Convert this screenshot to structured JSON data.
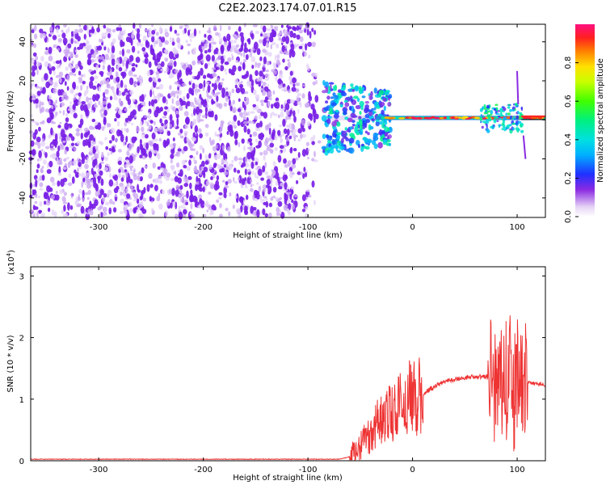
{
  "title": "C2E2.2023.174.07.01.R15",
  "colors": {
    "snr_line": "#ee3333",
    "axis": "#000000",
    "noise": "#7a1fe6",
    "bg": "#ffffff"
  },
  "chart_data": [
    {
      "type": "heatmap",
      "xlabel": "Height of straight line (km)",
      "ylabel": "Frequency (Hz)",
      "xlim": [
        -365,
        127
      ],
      "ylim": [
        -50,
        49
      ],
      "x_ticks": [
        -300,
        -200,
        -100,
        0,
        100
      ],
      "x_tick_labels": [
        "-300",
        "-200",
        "-100",
        "0",
        "100"
      ],
      "y_ticks": [
        -40,
        -20,
        0,
        20,
        40
      ],
      "y_tick_labels": [
        "-40",
        "-20",
        "0",
        "20",
        "40"
      ],
      "colorbar": {
        "label": "Normalized spectral amplitude",
        "range": [
          0,
          1
        ],
        "ticks": [
          0.0,
          0.2,
          0.4,
          0.6,
          0.8
        ],
        "tick_labels": [
          "0.0",
          "0.2",
          "0.4",
          "0.6",
          "0.8"
        ]
      },
      "noise_region": [
        -365,
        -85
      ],
      "signal_frequency_hz": 1
    },
    {
      "type": "line",
      "xlabel": "Height of straight line (km)",
      "ylabel": "SNR (10 * v/v)",
      "scale_label": "(x10",
      "scale_exp": "4",
      "scale_close": ")",
      "xlim": [
        -365,
        127
      ],
      "ylim": [
        0,
        3.15
      ],
      "x_ticks": [
        -300,
        -200,
        -100,
        0,
        100
      ],
      "x_tick_labels": [
        "-300",
        "-200",
        "-100",
        "0",
        "100"
      ],
      "y_ticks": [
        0,
        1,
        2,
        3
      ],
      "y_tick_labels": [
        "0",
        "1",
        "2",
        "3"
      ],
      "series": [
        {
          "x": [
            -365,
            -300,
            -200,
            -100,
            -70,
            -60,
            -55,
            -50,
            -45,
            -40,
            -35,
            -30,
            -25,
            -20,
            -15,
            -10,
            -5,
            0,
            5,
            10,
            20,
            30,
            40,
            50,
            60,
            70,
            75,
            80,
            85,
            90,
            95,
            100,
            105,
            110,
            115,
            120,
            127
          ],
          "y": [
            0.02,
            0.02,
            0.02,
            0.02,
            0.02,
            0.06,
            0.12,
            0.22,
            0.3,
            0.42,
            0.55,
            0.6,
            0.7,
            0.74,
            0.8,
            0.9,
            0.95,
            0.98,
            1.02,
            1.08,
            1.2,
            1.28,
            1.32,
            1.35,
            1.37,
            1.36,
            1.38,
            1.36,
            1.36,
            1.32,
            1.3,
            1.3,
            1.28,
            1.27,
            1.26,
            1.25,
            1.23
          ]
        }
      ]
    }
  ]
}
